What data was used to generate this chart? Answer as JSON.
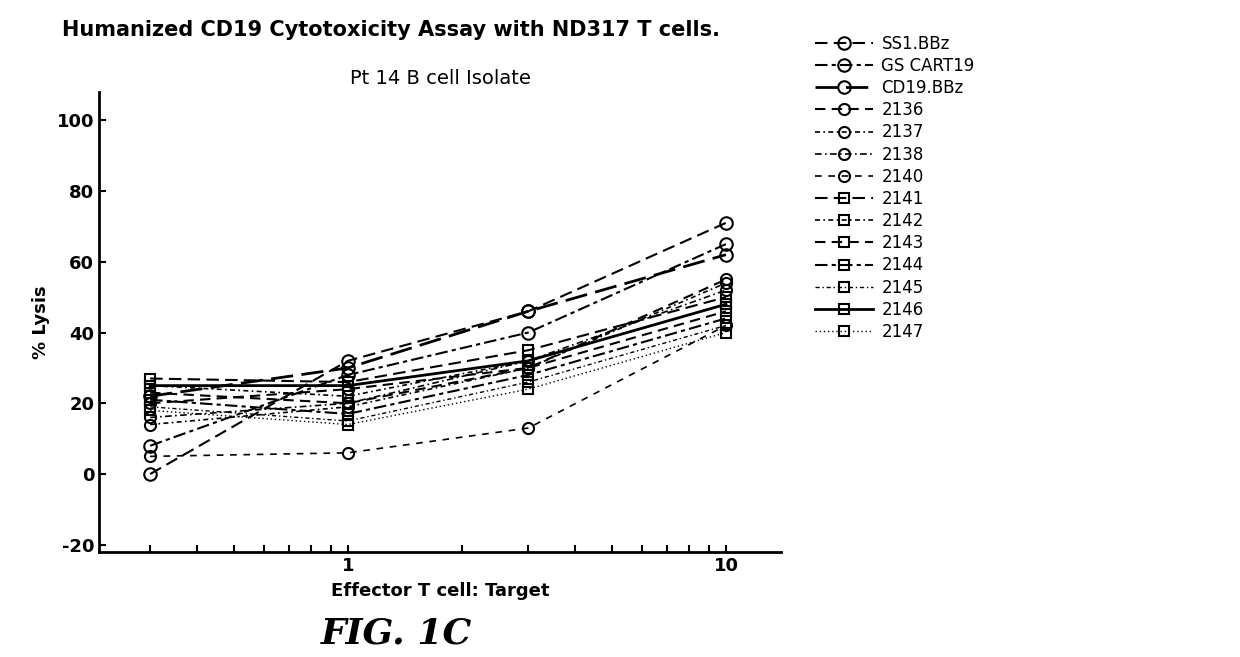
{
  "title": "Humanized CD19 Cytotoxicity Assay with ND317 T cells.",
  "subtitle": "Pt 14 B cell Isolate",
  "xlabel": "Effector T cell: Target",
  "ylabel": "% Lysis",
  "fig_label": "FIG. 1C",
  "x_values": [
    0.3,
    1,
    3,
    10
  ],
  "ylim": [
    -22,
    108
  ],
  "yticks": [
    -20,
    0,
    20,
    40,
    60,
    80,
    100
  ],
  "series": [
    {
      "label": "SS1.BBz",
      "marker": "o",
      "linestyle": "--",
      "linewidth": 1.5,
      "markersize": 9,
      "dashes": [
        6,
        3
      ],
      "color": "#000000",
      "y": [
        0,
        32,
        46,
        71
      ]
    },
    {
      "label": "GS CART19",
      "marker": "o",
      "linestyle": "-.",
      "linewidth": 1.5,
      "markersize": 9,
      "dashes": [
        6,
        2,
        2,
        2
      ],
      "color": "#000000",
      "y": [
        8,
        28,
        40,
        65
      ]
    },
    {
      "label": "CD19.BBz",
      "marker": "o",
      "linestyle": "--",
      "linewidth": 2.0,
      "markersize": 9,
      "dashes": [
        8,
        3
      ],
      "color": "#000000",
      "y": [
        22,
        30,
        46,
        62
      ]
    },
    {
      "label": "2136",
      "marker": "o",
      "linestyle": "--",
      "linewidth": 1.5,
      "markersize": 8,
      "dashes": [
        5,
        3
      ],
      "color": "#000000",
      "y": [
        20,
        24,
        30,
        55
      ]
    },
    {
      "label": "2137",
      "marker": "o",
      "linestyle": "-.",
      "linewidth": 1.2,
      "markersize": 8,
      "dashes": [
        3,
        2,
        1,
        2
      ],
      "color": "#000000",
      "y": [
        14,
        19,
        30,
        54
      ]
    },
    {
      "label": "2138",
      "marker": "o",
      "linestyle": "-.",
      "linewidth": 1.2,
      "markersize": 8,
      "dashes": [
        4,
        2,
        1,
        2
      ],
      "color": "#000000",
      "y": [
        16,
        20,
        32,
        52
      ]
    },
    {
      "label": "2140",
      "marker": "o",
      "linestyle": "--",
      "linewidth": 1.2,
      "markersize": 8,
      "dashes": [
        4,
        4
      ],
      "color": "#000000",
      "y": [
        5,
        6,
        13,
        42
      ]
    },
    {
      "label": "2141",
      "marker": "s",
      "linestyle": "--",
      "linewidth": 1.5,
      "markersize": 7,
      "dashes": [
        6,
        3
      ],
      "color": "#000000",
      "y": [
        27,
        26,
        35,
        50
      ]
    },
    {
      "label": "2142",
      "marker": "s",
      "linestyle": "-.",
      "linewidth": 1.2,
      "markersize": 7,
      "dashes": [
        3,
        2,
        1,
        2
      ],
      "color": "#000000",
      "y": [
        25,
        22,
        32,
        48
      ]
    },
    {
      "label": "2143",
      "marker": "s",
      "linestyle": "--",
      "linewidth": 1.5,
      "markersize": 7,
      "dashes": [
        5,
        3
      ],
      "color": "#000000",
      "y": [
        23,
        20,
        30,
        46
      ]
    },
    {
      "label": "2144",
      "marker": "s",
      "linestyle": "-.",
      "linewidth": 1.5,
      "markersize": 7,
      "dashes": [
        6,
        2,
        2,
        2
      ],
      "color": "#000000",
      "y": [
        21,
        17,
        28,
        44
      ]
    },
    {
      "label": "2145",
      "marker": "s",
      "linestyle": "-.",
      "linewidth": 1.0,
      "markersize": 7,
      "dashes": [
        3,
        2,
        1,
        2
      ],
      "color": "#000000",
      "y": [
        19,
        15,
        26,
        42
      ]
    },
    {
      "label": "2146",
      "marker": "s",
      "linestyle": "-",
      "linewidth": 2.0,
      "markersize": 7,
      "dashes": [],
      "color": "#000000",
      "y": [
        25,
        25,
        32,
        48
      ]
    },
    {
      "label": "2147",
      "marker": "s",
      "linestyle": ":",
      "linewidth": 1.0,
      "markersize": 7,
      "dashes": [
        1,
        2
      ],
      "color": "#000000",
      "y": [
        18,
        14,
        24,
        40
      ]
    }
  ]
}
